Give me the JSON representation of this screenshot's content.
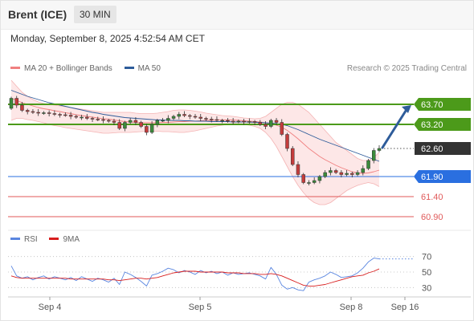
{
  "header": {
    "instrument": "Brent (ICE)",
    "interval": "30 MIN",
    "timestamp": "Monday, September 8, 2025 4:52:54 AM CET"
  },
  "legend": {
    "bollinger_label": "MA 20 + Bollinger Bands",
    "ma50_label": "MA 50",
    "credit": "Research © 2025 Trading Central",
    "rsi_label": "RSI",
    "rsi_ma_label": "9MA"
  },
  "colors": {
    "bollinger": "#f08080",
    "bollinger_fill": "#fde3e3",
    "ma50": "#2e5c9a",
    "support_green": "#4c9a1a",
    "resistance_red": "#e05a5a",
    "current_price": "#333333",
    "pivot_blue": "#2a6fe0",
    "arrow": "#2e5c9a",
    "rsi": "#5a86e0",
    "rsi_ma": "#d81e1e",
    "candle_up": "#3b8a3b",
    "candle_down": "#c43c3c"
  },
  "chart_data": [
    {
      "type": "candlestick",
      "x_ticks": [
        "Sep 4",
        "Sep 5",
        "Sep 8",
        "Sep 16"
      ],
      "ylim": [
        60.7,
        64.4
      ],
      "levels": [
        {
          "value": 63.7,
          "label": "63.70",
          "kind": "resistance",
          "color": "#4c9a1a"
        },
        {
          "value": 63.2,
          "label": "63.20",
          "kind": "resistance",
          "color": "#4c9a1a"
        },
        {
          "value": 62.6,
          "label": "62.60",
          "kind": "current",
          "color": "#333333"
        },
        {
          "value": 61.9,
          "label": "61.90",
          "kind": "pivot",
          "color": "#2a6fe0"
        },
        {
          "value": 61.4,
          "label": "61.40",
          "kind": "support",
          "color": "#e05a5a"
        },
        {
          "value": 60.9,
          "label": "60.90",
          "kind": "support",
          "color": "#e05a5a"
        }
      ],
      "arrow": {
        "from": 62.6,
        "to": 63.7
      },
      "closes": [
        63.85,
        63.68,
        63.55,
        63.52,
        63.5,
        63.48,
        63.49,
        63.47,
        63.45,
        63.44,
        63.43,
        63.4,
        63.38,
        63.38,
        63.35,
        63.33,
        63.32,
        63.3,
        63.28,
        63.25,
        63.1,
        63.25,
        63.3,
        63.25,
        63.15,
        63.0,
        63.2,
        63.3,
        63.3,
        63.35,
        63.4,
        63.45,
        63.42,
        63.4,
        63.38,
        63.35,
        63.33,
        63.32,
        63.3,
        63.3,
        63.28,
        63.27,
        63.28,
        63.26,
        63.27,
        63.25,
        63.2,
        63.15,
        63.3,
        63.25,
        62.95,
        62.6,
        62.2,
        61.95,
        61.75,
        61.75,
        61.8,
        61.9,
        62.0,
        62.05,
        62.0,
        61.95,
        61.98,
        61.95,
        62.0,
        62.1,
        62.3,
        62.55,
        62.6
      ],
      "ma20": [
        63.85,
        63.8,
        63.74,
        63.7,
        63.66,
        63.62,
        63.59,
        63.57,
        63.54,
        63.52,
        63.49,
        63.47,
        63.44,
        63.42,
        63.4,
        63.38,
        63.36,
        63.34,
        63.33,
        63.31,
        63.29,
        63.27,
        63.26,
        63.25,
        63.24,
        63.24,
        63.24,
        63.24,
        63.25,
        63.25,
        63.26,
        63.27,
        63.27,
        63.28,
        63.28,
        63.29,
        63.3,
        63.3,
        63.31,
        63.31,
        63.31,
        63.31,
        63.3,
        63.29,
        63.28,
        63.27,
        63.26,
        63.24,
        63.22,
        63.18,
        63.13,
        63.05,
        62.95,
        62.84,
        62.72,
        62.6,
        62.5,
        62.4,
        62.32,
        62.25,
        62.18,
        62.12,
        62.07,
        62.02,
        61.99,
        61.98,
        61.99,
        62.02,
        62.06
      ],
      "bb_upper": [
        64.3,
        64.15,
        64.0,
        63.9,
        63.82,
        63.76,
        63.72,
        63.7,
        63.68,
        63.66,
        63.64,
        63.62,
        63.6,
        63.58,
        63.56,
        63.54,
        63.52,
        63.5,
        63.5,
        63.5,
        63.5,
        63.5,
        63.5,
        63.48,
        63.47,
        63.47,
        63.47,
        63.48,
        63.5,
        63.52,
        63.55,
        63.56,
        63.56,
        63.55,
        63.53,
        63.51,
        63.48,
        63.46,
        63.44,
        63.42,
        63.41,
        63.4,
        63.38,
        63.36,
        63.35,
        63.34,
        63.35,
        63.4,
        63.5,
        63.6,
        63.7,
        63.75,
        63.75,
        63.7,
        63.6,
        63.5,
        63.35,
        63.2,
        63.05,
        62.9,
        62.75,
        62.65,
        62.55,
        62.45,
        62.35,
        62.3,
        62.3,
        62.38,
        62.5
      ],
      "bb_lower": [
        63.3,
        63.35,
        63.35,
        63.32,
        63.3,
        63.27,
        63.24,
        63.2,
        63.17,
        63.15,
        63.12,
        63.1,
        63.08,
        63.06,
        63.04,
        63.02,
        63.0,
        62.98,
        62.98,
        62.99,
        63.0,
        63.0,
        63.0,
        63.01,
        63.02,
        63.03,
        63.03,
        63.03,
        63.02,
        63.02,
        63.01,
        63.0,
        63.0,
        63.02,
        63.04,
        63.07,
        63.1,
        63.13,
        63.16,
        63.18,
        63.2,
        63.22,
        63.21,
        63.2,
        63.18,
        63.15,
        63.1,
        63.0,
        62.85,
        62.65,
        62.4,
        62.15,
        61.9,
        61.68,
        61.5,
        61.35,
        61.25,
        61.2,
        61.2,
        61.25,
        61.35,
        61.45,
        61.55,
        61.62,
        61.68,
        61.72,
        61.75,
        61.72,
        61.65
      ],
      "ma50": [
        64.05,
        64.0,
        63.95,
        63.9,
        63.86,
        63.82,
        63.78,
        63.74,
        63.71,
        63.68,
        63.65,
        63.62,
        63.59,
        63.56,
        63.53,
        63.5,
        63.48,
        63.45,
        63.43,
        63.41,
        63.39,
        63.37,
        63.36,
        63.35,
        63.34,
        63.33,
        63.32,
        63.31,
        63.31,
        63.3,
        63.3,
        63.3,
        63.29,
        63.29,
        63.28,
        63.28,
        63.28,
        63.27,
        63.27,
        63.27,
        63.27,
        63.26,
        63.26,
        63.26,
        63.26,
        63.25,
        63.25,
        63.24,
        63.23,
        63.22,
        63.2,
        63.17,
        63.12,
        63.07,
        63.01,
        62.95,
        62.89,
        62.83,
        62.78,
        62.73,
        62.68,
        62.63,
        62.58,
        62.53,
        62.48,
        62.43,
        62.38,
        62.33,
        62.28
      ]
    },
    {
      "type": "line",
      "title": "RSI",
      "x_ticks": [
        "Sep 4",
        "Sep 5",
        "Sep 8",
        "Sep 16"
      ],
      "yticks": [
        70,
        50,
        30
      ],
      "ylim": [
        20,
        80
      ],
      "series": [
        {
          "name": "RSI",
          "color": "#5a86e0",
          "values": [
            58,
            45,
            42,
            44,
            40,
            43,
            45,
            41,
            44,
            42,
            40,
            43,
            39,
            44,
            41,
            38,
            42,
            40,
            37,
            42,
            34,
            50,
            47,
            43,
            38,
            32,
            46,
            48,
            51,
            55,
            53,
            49,
            52,
            50,
            47,
            52,
            49,
            51,
            48,
            50,
            46,
            49,
            47,
            48,
            49,
            47,
            45,
            41,
            56,
            47,
            33,
            28,
            30,
            27,
            26,
            37,
            40,
            42,
            45,
            50,
            47,
            43,
            44,
            45,
            49,
            55,
            63,
            68,
            67
          ]
        },
        {
          "name": "9MA",
          "color": "#d81e1e",
          "values": [
            45,
            43,
            42,
            42,
            42,
            42,
            42,
            42,
            42,
            42,
            42,
            41,
            41,
            41,
            41,
            41,
            41,
            41,
            40,
            40,
            39,
            40,
            41,
            42,
            42,
            41,
            42,
            43,
            45,
            47,
            49,
            50,
            51,
            51,
            51,
            50,
            50,
            50,
            50,
            50,
            49,
            49,
            49,
            48,
            48,
            48,
            47,
            47,
            48,
            47,
            45,
            42,
            39,
            36,
            33,
            32,
            32,
            33,
            34,
            36,
            38,
            40,
            42,
            44,
            45,
            46,
            49,
            51,
            54
          ]
        }
      ]
    }
  ]
}
